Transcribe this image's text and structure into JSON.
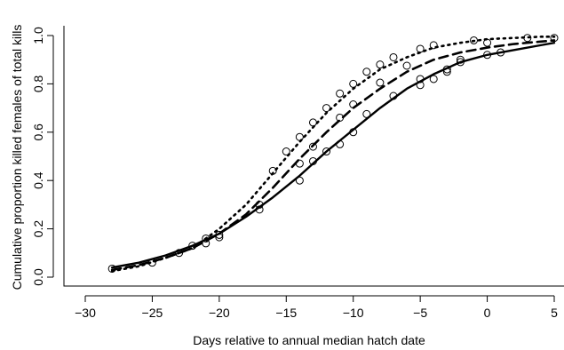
{
  "chart_data": {
    "type": "scatter",
    "title": "",
    "xlabel": "Days relative to annual median hatch date",
    "ylabel": "Cumulative proportion killed females of total kills",
    "xlim": [
      -30,
      5
    ],
    "ylim": [
      0.0,
      1.0
    ],
    "x_ticks": [
      -30,
      -25,
      -20,
      -15,
      -10,
      -5,
      0,
      5
    ],
    "y_ticks": [
      0.0,
      0.2,
      0.4,
      0.6,
      0.8,
      1.0
    ],
    "x_tick_labels": [
      "−30",
      "−25",
      "−20",
      "−15",
      "−10",
      "−5",
      "0",
      "5"
    ],
    "y_tick_labels": [
      "0.0",
      "0.2",
      "0.4",
      "0.6",
      "0.8",
      "1.0"
    ],
    "grid": false,
    "legend": "none",
    "series": [
      {
        "line_style": "solid",
        "curve": {
          "x": [
            -28,
            -26,
            -24,
            -22,
            -20,
            -18,
            -16,
            -14,
            -12,
            -10,
            -8,
            -6,
            -4,
            -2,
            0,
            2,
            4,
            5
          ],
          "y": [
            0.04,
            0.06,
            0.09,
            0.13,
            0.18,
            0.25,
            0.33,
            0.42,
            0.52,
            0.61,
            0.7,
            0.78,
            0.84,
            0.89,
            0.92,
            0.94,
            0.96,
            0.97
          ]
        },
        "points": {
          "x": [
            -28,
            -21,
            -20,
            -17,
            -14,
            -13,
            -12,
            -11,
            -10,
            -9,
            -7,
            -5,
            -4,
            -3,
            -2,
            0,
            1
          ],
          "y": [
            0.035,
            0.14,
            0.165,
            0.28,
            0.4,
            0.48,
            0.52,
            0.55,
            0.6,
            0.675,
            0.75,
            0.795,
            0.82,
            0.86,
            0.89,
            0.92,
            0.93
          ]
        }
      },
      {
        "line_style": "dashed",
        "curve": {
          "x": [
            -28,
            -26,
            -24,
            -22,
            -20,
            -18,
            -16,
            -14,
            -12,
            -10,
            -8,
            -6,
            -4,
            -2,
            0,
            2,
            4,
            5
          ],
          "y": [
            0.03,
            0.05,
            0.08,
            0.12,
            0.18,
            0.26,
            0.37,
            0.49,
            0.6,
            0.7,
            0.78,
            0.85,
            0.9,
            0.93,
            0.95,
            0.965,
            0.975,
            0.98
          ]
        },
        "points": {
          "x": [
            -20,
            -17,
            -14,
            -13,
            -11,
            -10,
            -8,
            -6,
            -5,
            -3,
            -2,
            0,
            3
          ],
          "y": [
            0.175,
            0.3,
            0.47,
            0.54,
            0.66,
            0.715,
            0.805,
            0.875,
            0.82,
            0.85,
            0.9,
            0.97,
            0.99
          ]
        }
      },
      {
        "line_style": "dotted",
        "curve": {
          "x": [
            -28,
            -26,
            -24,
            -22,
            -20,
            -18,
            -16,
            -14,
            -12,
            -10,
            -8,
            -6,
            -4,
            -2,
            0,
            2,
            4,
            5
          ],
          "y": [
            0.025,
            0.045,
            0.08,
            0.12,
            0.2,
            0.3,
            0.43,
            0.56,
            0.68,
            0.78,
            0.86,
            0.91,
            0.95,
            0.97,
            0.985,
            0.99,
            0.995,
            0.995
          ]
        },
        "points": {
          "x": [
            -25,
            -23,
            -22,
            -21,
            -16,
            -15,
            -14,
            -13,
            -12,
            -11,
            -10,
            -9,
            -8,
            -7,
            -5,
            -4,
            -1,
            5
          ],
          "y": [
            0.06,
            0.1,
            0.13,
            0.16,
            0.44,
            0.52,
            0.58,
            0.64,
            0.7,
            0.76,
            0.8,
            0.85,
            0.88,
            0.91,
            0.945,
            0.96,
            0.98,
            0.99
          ]
        }
      }
    ]
  }
}
